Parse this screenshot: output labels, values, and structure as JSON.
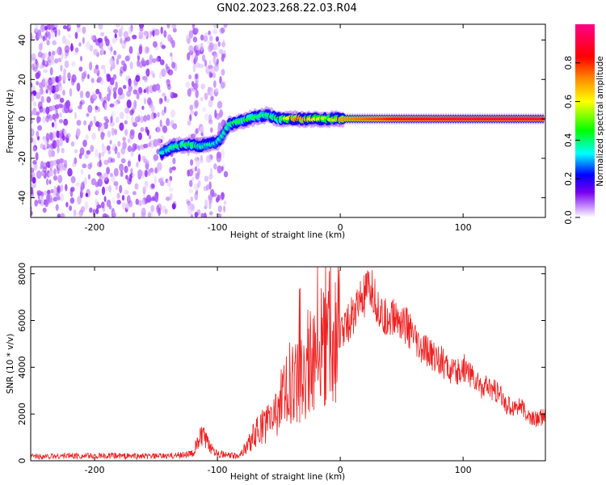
{
  "title": "GN02.2023.268.22.03.R04",
  "colors": {
    "snr_line": "#ee2222",
    "frame": "#000000",
    "background": "#ffffff"
  },
  "chart_data": [
    {
      "type": "heatmap",
      "xlabel": "Height of straight line (km)",
      "ylabel": "Frequency (Hz)",
      "xlim": [
        -252,
        167
      ],
      "ylim": [
        -50,
        48
      ],
      "x_ticks": [
        -200,
        -100,
        0,
        100
      ],
      "y_ticks": [
        -40,
        -20,
        0,
        20,
        40
      ],
      "colorbar": {
        "label": "Normalized spectral amplitude",
        "range": [
          0,
          1
        ],
        "ticks": [
          0.0,
          0.2,
          0.4,
          0.6,
          0.8
        ],
        "colormap": [
          "#ffffff",
          "#cc99ff",
          "#7700ee",
          "#0000ff",
          "#00ffff",
          "#00ff00",
          "#ffff00",
          "#ff8800",
          "#ff0000",
          "#ff0088"
        ]
      },
      "regions": [
        {
          "name": "noise",
          "x_range": [
            -252,
            -134
          ],
          "y_range": [
            -50,
            48
          ],
          "amplitude": 0.05
        },
        {
          "name": "noise",
          "x_range": [
            -125,
            -93
          ],
          "y_range": [
            -50,
            48
          ],
          "amplitude": 0.04
        }
      ],
      "ridge": [
        {
          "x": -145,
          "y": -17,
          "amplitude": 0.35
        },
        {
          "x": -135,
          "y": -14,
          "amplitude": 0.4
        },
        {
          "x": -125,
          "y": -13,
          "amplitude": 0.45
        },
        {
          "x": -115,
          "y": -14,
          "amplitude": 0.4
        },
        {
          "x": -100,
          "y": -12,
          "amplitude": 0.35
        },
        {
          "x": -90,
          "y": -3,
          "amplitude": 0.4
        },
        {
          "x": -75,
          "y": 0,
          "amplitude": 0.45
        },
        {
          "x": -60,
          "y": 2,
          "amplitude": 0.4
        },
        {
          "x": -50,
          "y": 0,
          "amplitude": 0.45
        },
        {
          "x": -35,
          "y": 0,
          "amplitude": 0.75
        },
        {
          "x": -20,
          "y": 0,
          "amplitude": 0.6
        },
        {
          "x": -5,
          "y": 0,
          "amplitude": 0.55
        },
        {
          "x": 0,
          "y": 0,
          "amplitude": 0.7
        },
        {
          "x": 50,
          "y": 0,
          "amplitude": 0.85
        },
        {
          "x": 100,
          "y": 0,
          "amplitude": 0.9
        },
        {
          "x": 167,
          "y": 0,
          "amplitude": 0.9
        }
      ]
    },
    {
      "type": "line",
      "xlabel": "Height of straight line (km)",
      "ylabel": "SNR (10 * v/v)",
      "xlim": [
        -252,
        167
      ],
      "ylim": [
        0,
        8300
      ],
      "x_ticks": [
        -200,
        -100,
        0,
        100
      ],
      "y_ticks": [
        0,
        2000,
        4000,
        6000,
        8000
      ],
      "series": [
        {
          "x": [
            -252,
            -240,
            -220,
            -200,
            -180,
            -160,
            -140,
            -120,
            -115,
            -112,
            -108,
            -100,
            -95,
            -85,
            -80,
            -75,
            -70,
            -65,
            -60,
            -55,
            -50,
            -45,
            -40,
            -35,
            -30,
            -25,
            -20,
            -15,
            -10,
            -5,
            0,
            5,
            10,
            15,
            20,
            25,
            30,
            35,
            40,
            45,
            50,
            55,
            60,
            65,
            70,
            75,
            80,
            85,
            90,
            95,
            100,
            105,
            110,
            115,
            120,
            125,
            130,
            135,
            140,
            145,
            150,
            155,
            160,
            167
          ],
          "y": [
            200,
            180,
            220,
            200,
            210,
            190,
            200,
            300,
            900,
            1100,
            700,
            350,
            250,
            200,
            350,
            700,
            1100,
            1400,
            1600,
            1900,
            2400,
            2800,
            3500,
            3300,
            3700,
            4500,
            4300,
            5100,
            5200,
            5400,
            5600,
            5800,
            6200,
            6700,
            7000,
            7300,
            6700,
            6000,
            6200,
            6100,
            6000,
            5700,
            5200,
            4700,
            4700,
            4500,
            4400,
            4100,
            3800,
            3700,
            4000,
            3800,
            3400,
            3200,
            3100,
            3000,
            2800,
            2400,
            2300,
            2400,
            2100,
            1800,
            1800,
            1900
          ]
        }
      ]
    }
  ]
}
